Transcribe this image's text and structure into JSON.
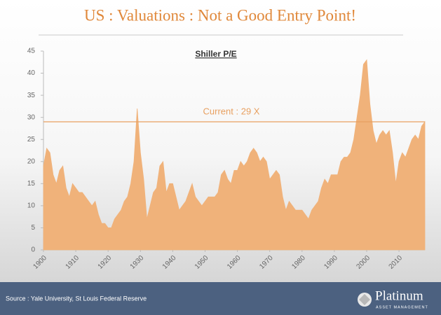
{
  "chart_data": {
    "type": "area",
    "title": "US : Valuations : Not a Good Entry Point!",
    "subtitle": "Shiller P/E",
    "color": "#f0b27a",
    "x": [
      1900,
      1901,
      1902,
      1903,
      1904,
      1905,
      1906,
      1907,
      1908,
      1909,
      1910,
      1911,
      1912,
      1913,
      1914,
      1915,
      1916,
      1917,
      1918,
      1919,
      1920,
      1921,
      1922,
      1923,
      1924,
      1925,
      1926,
      1927,
      1928,
      1929,
      1930,
      1931,
      1932,
      1933,
      1934,
      1935,
      1936,
      1937,
      1938,
      1939,
      1940,
      1941,
      1942,
      1943,
      1944,
      1945,
      1946,
      1947,
      1948,
      1949,
      1950,
      1951,
      1952,
      1953,
      1954,
      1955,
      1956,
      1957,
      1958,
      1959,
      1960,
      1961,
      1962,
      1963,
      1964,
      1965,
      1966,
      1967,
      1968,
      1969,
      1970,
      1971,
      1972,
      1973,
      1974,
      1975,
      1976,
      1977,
      1978,
      1979,
      1980,
      1981,
      1982,
      1983,
      1984,
      1985,
      1986,
      1987,
      1988,
      1989,
      1990,
      1991,
      1992,
      1993,
      1994,
      1995,
      1996,
      1997,
      1998,
      1999,
      2000,
      2001,
      2002,
      2003,
      2004,
      2005,
      2006,
      2007,
      2008,
      2009,
      2010,
      2011,
      2012,
      2013,
      2014,
      2015,
      2016,
      2017,
      2018
    ],
    "values": [
      19,
      23,
      22,
      17,
      15,
      18,
      19,
      14,
      12,
      15,
      14,
      13,
      13,
      12,
      11,
      10,
      11,
      8,
      6,
      6,
      5,
      5,
      7,
      8,
      9,
      11,
      12,
      15,
      20,
      32,
      22,
      16,
      7,
      10,
      13,
      14,
      19,
      20,
      13,
      15,
      15,
      12,
      9,
      10,
      11,
      13,
      15,
      12,
      11,
      10,
      11,
      12,
      12,
      12,
      13,
      17,
      18,
      16,
      15,
      18,
      18,
      20,
      19,
      20,
      22,
      23,
      22,
      20,
      21,
      20,
      16,
      17,
      18,
      17,
      12,
      9,
      11,
      10,
      9,
      9,
      9,
      8,
      7,
      9,
      10,
      11,
      14,
      16,
      15,
      17,
      17,
      17,
      20,
      21,
      21,
      22,
      25,
      30,
      35,
      42,
      43,
      33,
      27,
      24,
      26,
      27,
      26,
      27,
      22,
      15,
      20,
      22,
      21,
      23,
      25,
      26,
      25,
      28,
      29
    ],
    "xlim": [
      1900,
      2018
    ],
    "xticks": [
      1900,
      1910,
      1920,
      1930,
      1940,
      1950,
      1960,
      1970,
      1980,
      1990,
      2000,
      2010
    ],
    "ylim": [
      0,
      45
    ],
    "yticks": [
      0,
      5,
      10,
      15,
      20,
      25,
      30,
      35,
      40,
      45
    ],
    "annotation": {
      "text": "Current : 29 X",
      "value": 29,
      "color": "#e8a060"
    }
  },
  "footer": {
    "source": "Source : Yale University, St Louis Federal Reserve",
    "logo": "Platinum",
    "logo_tagline": "ASSET MANAGEMENT"
  }
}
